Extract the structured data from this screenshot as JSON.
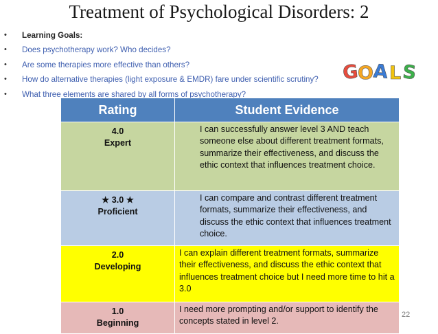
{
  "slide": {
    "title": "Treatment of Psychological Disorders: 2",
    "page_number": "22"
  },
  "goals": {
    "heading": "Learning Goals:",
    "questions": [
      "Does psychotherapy work?  Who decides?",
      "Are some therapies more effective than others?",
      "How do alternative therapies (light exposure & EMDR) fare under scientific scrutiny?",
      "What three elements are shared by all forms of psychotherapy?"
    ],
    "logo_text": "GOALS",
    "logo_colors": [
      "#e84c3d",
      "#f5a623",
      "#3a7bd5",
      "#f1c40f",
      "#3cb04a"
    ]
  },
  "rubric": {
    "headers": [
      "Rating",
      "Student Evidence"
    ],
    "rows": [
      {
        "score": "4.0",
        "level": "Expert",
        "evidence": "I can successfully answer level 3 AND teach someone else about different treatment formats, summarize their effectiveness, and discuss the ethic context that influences treatment choice.",
        "color": "#c6d6a0"
      },
      {
        "score": "3.0",
        "level": "Proficient",
        "evidence": "I can compare and contrast different treatment formats, summarize their effectiveness, and discuss the ethic context that influences  treatment choice.",
        "color": "#b9cce4"
      },
      {
        "score": "2.0",
        "level": "Developing",
        "evidence": "I can explain different treatment formats, summarize their effectiveness, and discuss the ethic context that influences  treatment choice but I need more time to hit a 3.0",
        "color": "#ffff00"
      },
      {
        "score": "1.0",
        "level": "Beginning",
        "evidence": "I need more prompting and/or support to identify the concepts stated in level 2.",
        "color": "#e6b9b8"
      }
    ]
  }
}
